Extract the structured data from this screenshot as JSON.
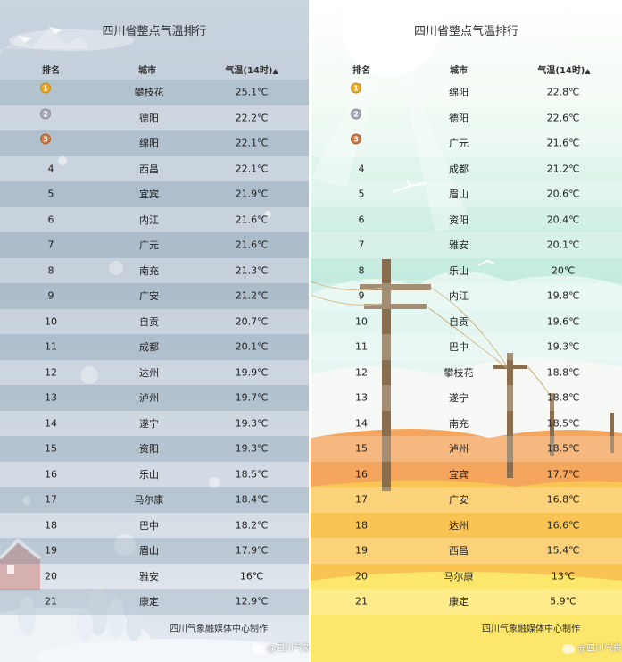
{
  "left": {
    "title": "四川省整点气温排行",
    "headers": {
      "rank": "排名",
      "city": "城市",
      "temp": "气温(14时)"
    },
    "rows": [
      {
        "rank": "1",
        "city": "攀枝花",
        "temp": "25.1℃"
      },
      {
        "rank": "2",
        "city": "德阳",
        "temp": "22.2℃"
      },
      {
        "rank": "3",
        "city": "绵阳",
        "temp": "22.1℃"
      },
      {
        "rank": "4",
        "city": "西昌",
        "temp": "22.1℃"
      },
      {
        "rank": "5",
        "city": "宜宾",
        "temp": "21.9℃"
      },
      {
        "rank": "6",
        "city": "内江",
        "temp": "21.6℃"
      },
      {
        "rank": "7",
        "city": "广元",
        "temp": "21.6℃"
      },
      {
        "rank": "8",
        "city": "南充",
        "temp": "21.3℃"
      },
      {
        "rank": "9",
        "city": "广安",
        "temp": "21.2℃"
      },
      {
        "rank": "10",
        "city": "自贡",
        "temp": "20.7℃"
      },
      {
        "rank": "11",
        "city": "成都",
        "temp": "20.1℃"
      },
      {
        "rank": "12",
        "city": "达州",
        "temp": "19.9℃"
      },
      {
        "rank": "13",
        "city": "泸州",
        "temp": "19.7℃"
      },
      {
        "rank": "14",
        "city": "遂宁",
        "temp": "19.3℃"
      },
      {
        "rank": "15",
        "city": "资阳",
        "temp": "19.3℃"
      },
      {
        "rank": "16",
        "city": "乐山",
        "temp": "18.5℃"
      },
      {
        "rank": "17",
        "city": "马尔康",
        "temp": "18.4℃"
      },
      {
        "rank": "18",
        "city": "巴中",
        "temp": "18.2℃"
      },
      {
        "rank": "19",
        "city": "眉山",
        "temp": "17.9℃"
      },
      {
        "rank": "20",
        "city": "雅安",
        "temp": "16℃"
      },
      {
        "rank": "21",
        "city": "康定",
        "temp": "12.9℃"
      }
    ],
    "footer": "四川气象融媒体中心制作"
  },
  "right": {
    "title": "四川省整点气温排行",
    "headers": {
      "rank": "排名",
      "city": "城市",
      "temp": "气温(14时)"
    },
    "rows": [
      {
        "rank": "1",
        "city": "绵阳",
        "temp": "22.8℃"
      },
      {
        "rank": "2",
        "city": "德阳",
        "temp": "22.6℃"
      },
      {
        "rank": "3",
        "city": "广元",
        "temp": "21.6℃"
      },
      {
        "rank": "4",
        "city": "成都",
        "temp": "21.2℃"
      },
      {
        "rank": "5",
        "city": "眉山",
        "temp": "20.6℃"
      },
      {
        "rank": "6",
        "city": "资阳",
        "temp": "20.4℃"
      },
      {
        "rank": "7",
        "city": "雅安",
        "temp": "20.1℃"
      },
      {
        "rank": "8",
        "city": "乐山",
        "temp": "20℃"
      },
      {
        "rank": "9",
        "city": "内江",
        "temp": "19.8℃"
      },
      {
        "rank": "10",
        "city": "自贡",
        "temp": "19.6℃"
      },
      {
        "rank": "11",
        "city": "巴中",
        "temp": "19.3℃"
      },
      {
        "rank": "12",
        "city": "攀枝花",
        "temp": "18.8℃"
      },
      {
        "rank": "13",
        "city": "遂宁",
        "temp": "18.8℃"
      },
      {
        "rank": "14",
        "city": "南充",
        "temp": "18.5℃"
      },
      {
        "rank": "15",
        "city": "泸州",
        "temp": "18.5℃"
      },
      {
        "rank": "16",
        "city": "宜宾",
        "temp": "17.7℃"
      },
      {
        "rank": "17",
        "city": "广安",
        "temp": "16.8℃"
      },
      {
        "rank": "18",
        "city": "达州",
        "temp": "16.6℃"
      },
      {
        "rank": "19",
        "city": "西昌",
        "temp": "15.4℃"
      },
      {
        "rank": "20",
        "city": "马尔康",
        "temp": "13℃"
      },
      {
        "rank": "21",
        "city": "康定",
        "temp": "5.9℃"
      }
    ],
    "footer": "四川气象融媒体中心制作"
  },
  "watermark": "@四川气象",
  "sort_icon": "sort-up-icon",
  "medal_icons": [
    "gold-medal-icon",
    "silver-medal-icon",
    "bronze-medal-icon"
  ],
  "colors": {
    "gold": "#e7a92c",
    "silver": "#a6a8b6",
    "bronze": "#c57b4a"
  }
}
